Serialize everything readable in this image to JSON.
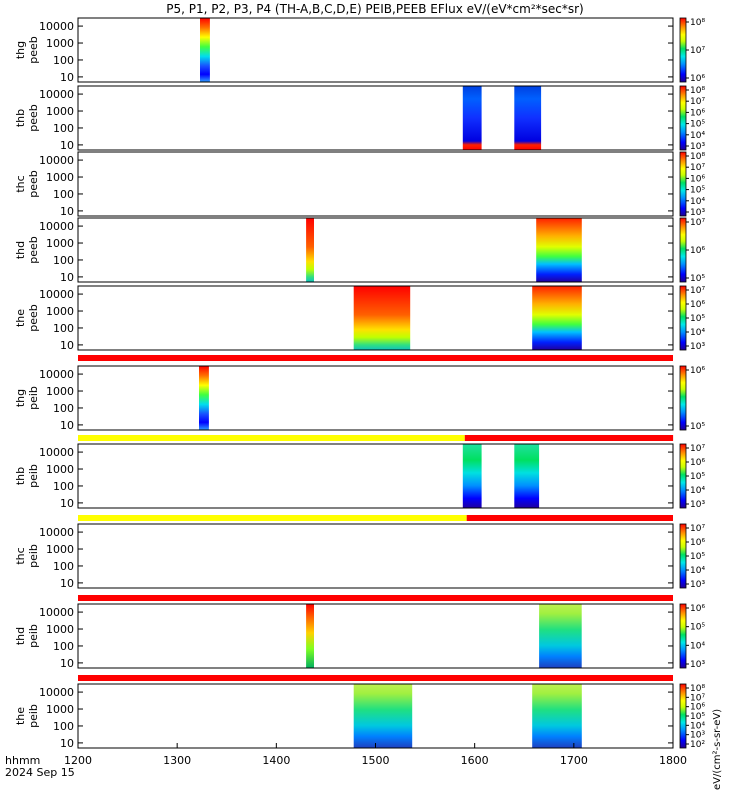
{
  "title": "P5, P1, P2, P3, P4 (TH-A,B,C,D,E) PEIB,PEEB EFlux eV/(eV*cm²*sec*sr)",
  "footer": {
    "label": "hhmm",
    "date": "2024 Sep 15"
  },
  "chart_data": {
    "type": "heatmap",
    "x_axis": {
      "ticks": [
        1200,
        1300,
        1400,
        1500,
        1600,
        1700,
        1800
      ],
      "range": [
        1200,
        1800
      ]
    },
    "y_ticks": [
      "10000",
      "1000",
      "100",
      "10"
    ],
    "colorbar_label": "eV/(cm²-s-sr-eV)",
    "panels": [
      {
        "label": [
          "thg",
          "peeb"
        ],
        "ylim": [
          5,
          30000
        ],
        "blocks": [
          {
            "x": [
              1323,
              1333
            ],
            "palette": "vertical-full"
          }
        ],
        "colorbar_ticks": [
          "10⁸",
          "10⁷",
          "10⁶"
        ]
      },
      {
        "label": [
          "thb",
          "peeb"
        ],
        "ylim": [
          5,
          30000
        ],
        "blocks": [
          {
            "x": [
              1588,
              1607
            ],
            "palette": "blue-bottom-red"
          },
          {
            "x": [
              1640,
              1667
            ],
            "palette": "blue-bottom-red"
          }
        ],
        "colorbar_ticks": [
          "10⁸",
          "10⁷",
          "10⁶",
          "10⁵",
          "10⁴",
          "10³"
        ]
      },
      {
        "label": [
          "thc",
          "peeb"
        ],
        "ylim": [
          5,
          30000
        ],
        "blocks": [],
        "colorbar_ticks": [
          "10⁸",
          "10⁷",
          "10⁶",
          "10⁵",
          "10⁴",
          "10³"
        ]
      },
      {
        "label": [
          "thd",
          "peeb"
        ],
        "ylim": [
          5,
          30000
        ],
        "blocks": [
          {
            "x": [
              1430,
              1438
            ],
            "palette": "red-top"
          },
          {
            "x": [
              1662,
              1708
            ],
            "palette": "mixed"
          }
        ],
        "colorbar_ticks": [
          "10⁷",
          "10⁶",
          "10⁵"
        ]
      },
      {
        "label": [
          "the",
          "peeb"
        ],
        "ylim": [
          5,
          30000
        ],
        "blocks": [
          {
            "x": [
              1478,
              1535
            ],
            "palette": "red-top"
          },
          {
            "x": [
              1658,
              1708
            ],
            "palette": "mixed"
          }
        ],
        "colorbar_ticks": [
          "10⁷",
          "10⁶",
          "10⁵",
          "10⁴",
          "10³"
        ]
      },
      {
        "label": [
          "thg",
          "peib"
        ],
        "ylim": [
          5,
          30000
        ],
        "blocks": [
          {
            "x": [
              1322,
              1332
            ],
            "palette": "vertical-full"
          }
        ],
        "colorbar_ticks": [
          "10⁶",
          "10⁵"
        ]
      },
      {
        "label": [
          "thb",
          "peib"
        ],
        "ylim": [
          5,
          30000
        ],
        "blocks": [
          {
            "x": [
              1588,
              1607
            ],
            "palette": "ion"
          },
          {
            "x": [
              1640,
              1665
            ],
            "palette": "ion"
          }
        ],
        "colorbar_ticks": [
          "10⁷",
          "10⁶",
          "10⁵",
          "10⁴",
          "10³"
        ]
      },
      {
        "label": [
          "thc",
          "peib"
        ],
        "ylim": [
          5,
          30000
        ],
        "blocks": [],
        "colorbar_ticks": [
          "10⁷",
          "10⁶",
          "10⁵",
          "10⁴",
          "10³"
        ]
      },
      {
        "label": [
          "thd",
          "peib"
        ],
        "ylim": [
          5,
          30000
        ],
        "blocks": [
          {
            "x": [
              1430,
              1438
            ],
            "palette": "ion-top"
          },
          {
            "x": [
              1665,
              1708
            ],
            "palette": "ion-green"
          }
        ],
        "colorbar_ticks": [
          "10⁶",
          "10⁵",
          "10⁴",
          "10³"
        ]
      },
      {
        "label": [
          "the",
          "peib"
        ],
        "ylim": [
          5,
          30000
        ],
        "blocks": [
          {
            "x": [
              1478,
              1537
            ],
            "palette": "ion-green"
          },
          {
            "x": [
              1658,
              1708
            ],
            "palette": "ion-green"
          }
        ],
        "colorbar_ticks": [
          "10⁸",
          "10⁷",
          "10⁶",
          "10⁵",
          "10⁴",
          "10³",
          "10²"
        ]
      }
    ],
    "status_bars": [
      {
        "segments": [
          {
            "x": [
              1200,
              1800
            ],
            "color": "#ff0000"
          }
        ]
      },
      {
        "segments": [
          {
            "x": [
              1200,
              1590
            ],
            "color": "#ffff00"
          },
          {
            "x": [
              1590,
              1800
            ],
            "color": "#ff0000"
          }
        ]
      },
      {
        "segments": [
          {
            "x": [
              1200,
              1592
            ],
            "color": "#ffff00"
          },
          {
            "x": [
              1592,
              1800
            ],
            "color": "#ff0000"
          }
        ]
      },
      {
        "segments": [
          {
            "x": [
              1200,
              1800
            ],
            "color": "#ff0000"
          }
        ]
      },
      {
        "segments": [
          {
            "x": [
              1200,
              1800
            ],
            "color": "#ff0000"
          }
        ]
      }
    ]
  }
}
